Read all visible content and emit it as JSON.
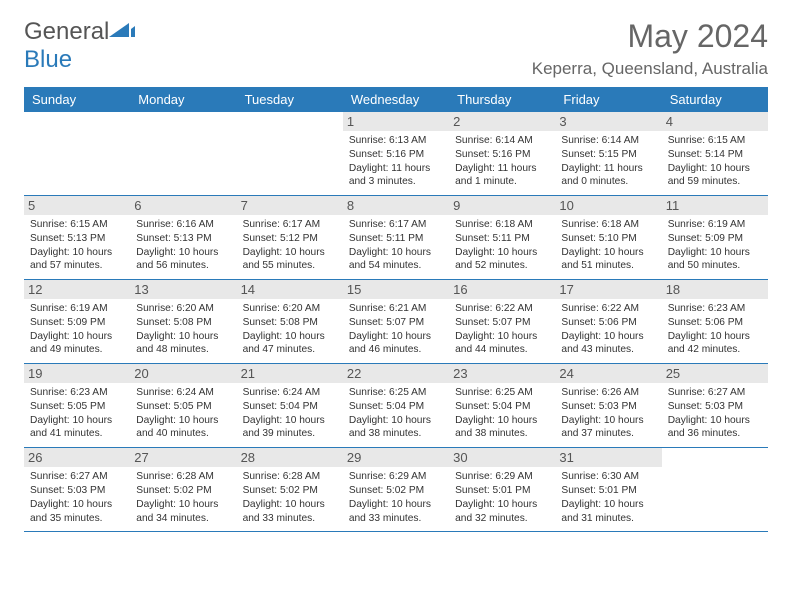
{
  "logo": {
    "text1": "General",
    "text2": "Blue"
  },
  "title": "May 2024",
  "location": "Keperra, Queensland, Australia",
  "colors": {
    "header_bg": "#2a7ab9",
    "header_text": "#ffffff",
    "day_header_bg": "#e8e8e8",
    "border": "#2a7ab9",
    "text": "#333333"
  },
  "weekdays": [
    "Sunday",
    "Monday",
    "Tuesday",
    "Wednesday",
    "Thursday",
    "Friday",
    "Saturday"
  ],
  "weeks": [
    [
      null,
      null,
      null,
      {
        "n": "1",
        "sr": "6:13 AM",
        "ss": "5:16 PM",
        "dl": "11 hours and 3 minutes."
      },
      {
        "n": "2",
        "sr": "6:14 AM",
        "ss": "5:16 PM",
        "dl": "11 hours and 1 minute."
      },
      {
        "n": "3",
        "sr": "6:14 AM",
        "ss": "5:15 PM",
        "dl": "11 hours and 0 minutes."
      },
      {
        "n": "4",
        "sr": "6:15 AM",
        "ss": "5:14 PM",
        "dl": "10 hours and 59 minutes."
      }
    ],
    [
      {
        "n": "5",
        "sr": "6:15 AM",
        "ss": "5:13 PM",
        "dl": "10 hours and 57 minutes."
      },
      {
        "n": "6",
        "sr": "6:16 AM",
        "ss": "5:13 PM",
        "dl": "10 hours and 56 minutes."
      },
      {
        "n": "7",
        "sr": "6:17 AM",
        "ss": "5:12 PM",
        "dl": "10 hours and 55 minutes."
      },
      {
        "n": "8",
        "sr": "6:17 AM",
        "ss": "5:11 PM",
        "dl": "10 hours and 54 minutes."
      },
      {
        "n": "9",
        "sr": "6:18 AM",
        "ss": "5:11 PM",
        "dl": "10 hours and 52 minutes."
      },
      {
        "n": "10",
        "sr": "6:18 AM",
        "ss": "5:10 PM",
        "dl": "10 hours and 51 minutes."
      },
      {
        "n": "11",
        "sr": "6:19 AM",
        "ss": "5:09 PM",
        "dl": "10 hours and 50 minutes."
      }
    ],
    [
      {
        "n": "12",
        "sr": "6:19 AM",
        "ss": "5:09 PM",
        "dl": "10 hours and 49 minutes."
      },
      {
        "n": "13",
        "sr": "6:20 AM",
        "ss": "5:08 PM",
        "dl": "10 hours and 48 minutes."
      },
      {
        "n": "14",
        "sr": "6:20 AM",
        "ss": "5:08 PM",
        "dl": "10 hours and 47 minutes."
      },
      {
        "n": "15",
        "sr": "6:21 AM",
        "ss": "5:07 PM",
        "dl": "10 hours and 46 minutes."
      },
      {
        "n": "16",
        "sr": "6:22 AM",
        "ss": "5:07 PM",
        "dl": "10 hours and 44 minutes."
      },
      {
        "n": "17",
        "sr": "6:22 AM",
        "ss": "5:06 PM",
        "dl": "10 hours and 43 minutes."
      },
      {
        "n": "18",
        "sr": "6:23 AM",
        "ss": "5:06 PM",
        "dl": "10 hours and 42 minutes."
      }
    ],
    [
      {
        "n": "19",
        "sr": "6:23 AM",
        "ss": "5:05 PM",
        "dl": "10 hours and 41 minutes."
      },
      {
        "n": "20",
        "sr": "6:24 AM",
        "ss": "5:05 PM",
        "dl": "10 hours and 40 minutes."
      },
      {
        "n": "21",
        "sr": "6:24 AM",
        "ss": "5:04 PM",
        "dl": "10 hours and 39 minutes."
      },
      {
        "n": "22",
        "sr": "6:25 AM",
        "ss": "5:04 PM",
        "dl": "10 hours and 38 minutes."
      },
      {
        "n": "23",
        "sr": "6:25 AM",
        "ss": "5:04 PM",
        "dl": "10 hours and 38 minutes."
      },
      {
        "n": "24",
        "sr": "6:26 AM",
        "ss": "5:03 PM",
        "dl": "10 hours and 37 minutes."
      },
      {
        "n": "25",
        "sr": "6:27 AM",
        "ss": "5:03 PM",
        "dl": "10 hours and 36 minutes."
      }
    ],
    [
      {
        "n": "26",
        "sr": "6:27 AM",
        "ss": "5:03 PM",
        "dl": "10 hours and 35 minutes."
      },
      {
        "n": "27",
        "sr": "6:28 AM",
        "ss": "5:02 PM",
        "dl": "10 hours and 34 minutes."
      },
      {
        "n": "28",
        "sr": "6:28 AM",
        "ss": "5:02 PM",
        "dl": "10 hours and 33 minutes."
      },
      {
        "n": "29",
        "sr": "6:29 AM",
        "ss": "5:02 PM",
        "dl": "10 hours and 33 minutes."
      },
      {
        "n": "30",
        "sr": "6:29 AM",
        "ss": "5:01 PM",
        "dl": "10 hours and 32 minutes."
      },
      {
        "n": "31",
        "sr": "6:30 AM",
        "ss": "5:01 PM",
        "dl": "10 hours and 31 minutes."
      },
      null
    ]
  ],
  "labels": {
    "sunrise": "Sunrise:",
    "sunset": "Sunset:",
    "daylight": "Daylight:"
  }
}
